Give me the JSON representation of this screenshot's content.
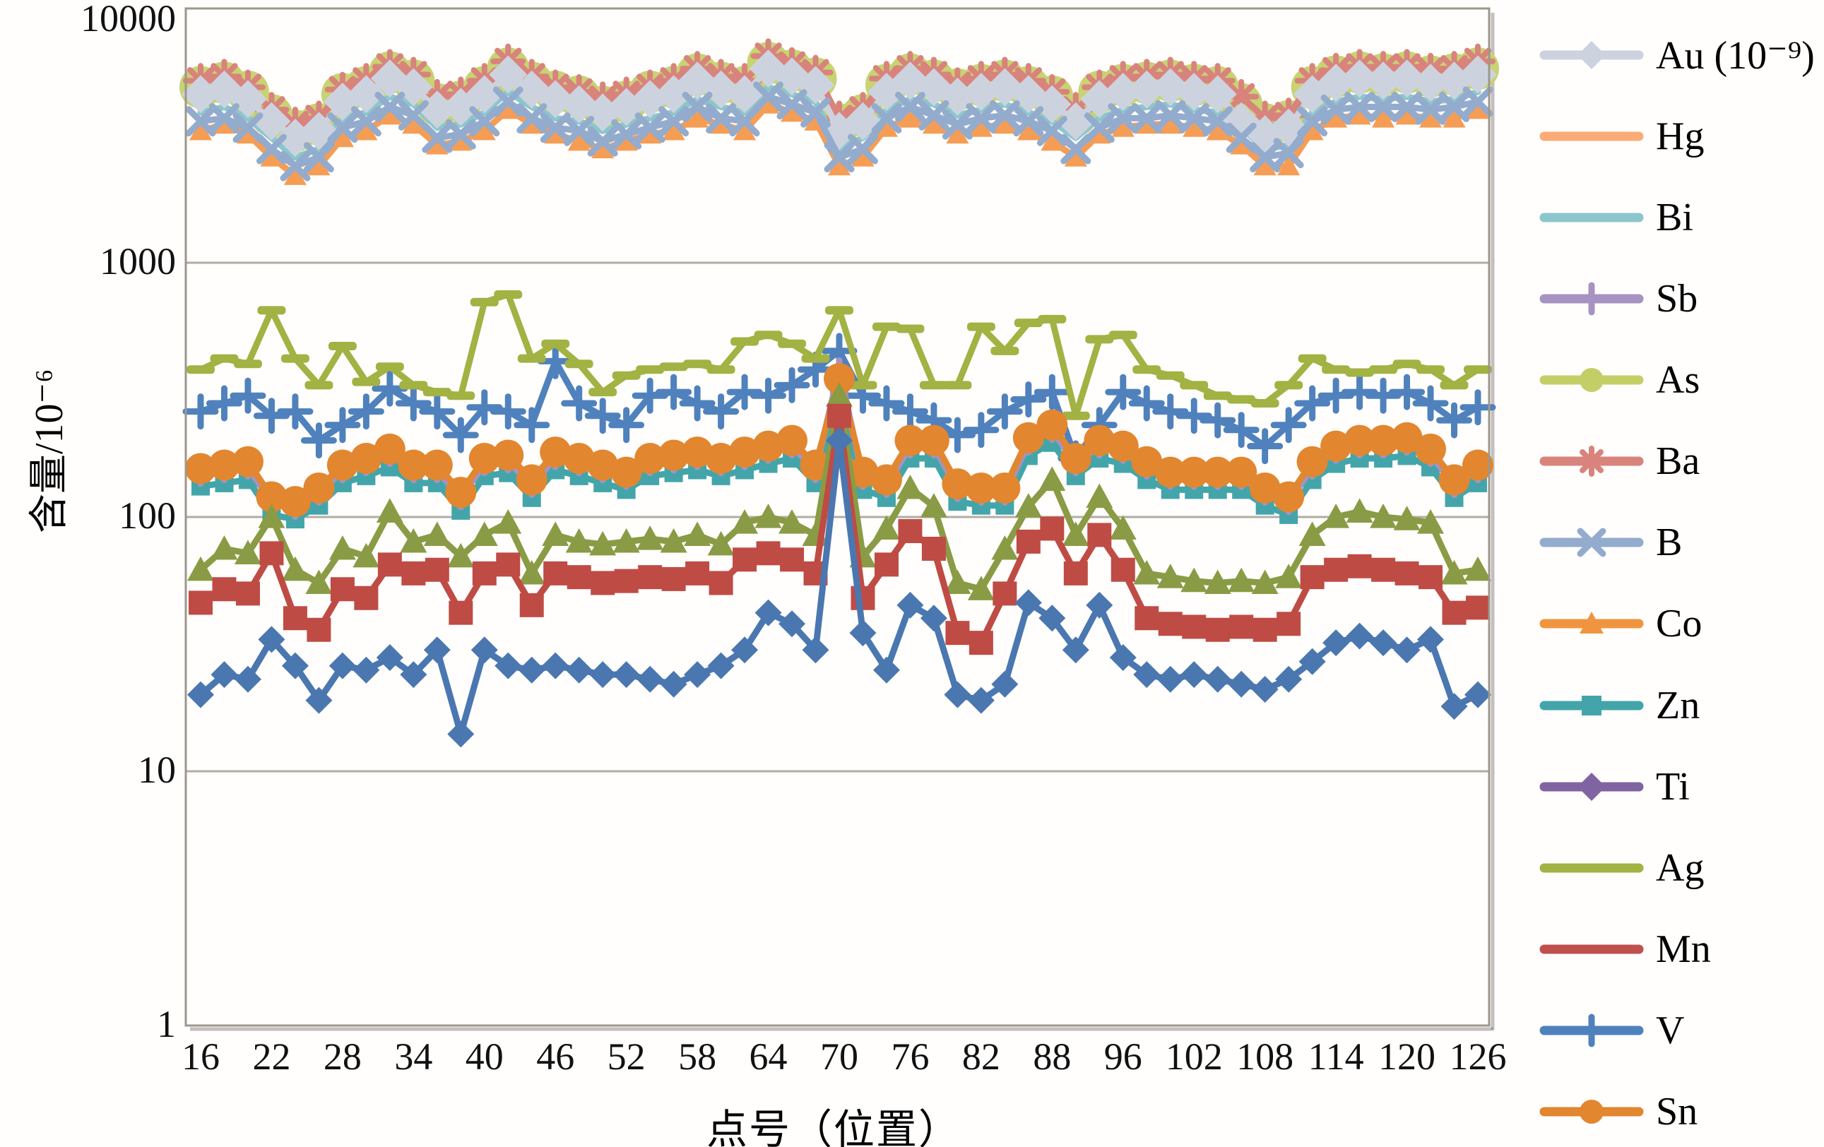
{
  "figure": {
    "y_axis": {
      "title": "含量/10⁻⁶",
      "ticks": [
        "10000",
        "1000",
        "100",
        "10",
        "1"
      ]
    },
    "x_axis": {
      "title": "点号（位置）",
      "tick_labels": [
        "16",
        "22",
        "28",
        "34",
        "40",
        "46",
        "52",
        "58",
        "64",
        "70",
        "76",
        "82",
        "88",
        "96",
        "102",
        "108",
        "114",
        "120",
        "126"
      ]
    },
    "grid_color": "#b2aca4",
    "border_color": "#9e968c",
    "legend_position": "right"
  },
  "chart_data": {
    "type": "line",
    "y_scale": "log",
    "ylim": [
      1,
      10000
    ],
    "x_categories": [
      16,
      18,
      20,
      22,
      24,
      26,
      28,
      30,
      32,
      34,
      36,
      38,
      40,
      42,
      44,
      46,
      48,
      50,
      52,
      54,
      56,
      58,
      60,
      62,
      64,
      66,
      68,
      70,
      72,
      74,
      76,
      78,
      80,
      82,
      84,
      86,
      88,
      90,
      92,
      96,
      98,
      100,
      102,
      104,
      106,
      108,
      110,
      112,
      114,
      116,
      118,
      120,
      122,
      124,
      126
    ],
    "label_every": 3,
    "legend_order": [
      "Au",
      "Hg",
      "Bi",
      "Sb",
      "As",
      "Ba",
      "B",
      "Co",
      "Zn",
      "Ti",
      "Ag",
      "Mn",
      "V",
      "Sn"
    ],
    "draw_order": [
      "As",
      "Ba",
      "Bi",
      "Au",
      "Hg",
      "B",
      "V",
      "Ag",
      "Zn",
      "Sb",
      "Sn",
      "Co",
      "Mn",
      "Ti"
    ],
    "series": [
      {
        "name": "Au",
        "legend_label": "Au (10⁻⁹)",
        "color": "#cdd3de",
        "legend_color": "#cdd3de",
        "marker": "diamond",
        "legend_marker": "diamond",
        "marker_size": 27,
        "values": [
          4600,
          4800,
          4400,
          3600,
          3100,
          3300,
          4300,
          4600,
          5300,
          4900,
          4000,
          4100,
          4600,
          5500,
          4800,
          4400,
          4200,
          3900,
          4100,
          4400,
          4600,
          5200,
          4800,
          4600,
          5800,
          5400,
          5000,
          3300,
          3600,
          4700,
          5200,
          4900,
          4500,
          4700,
          4900,
          4600,
          4200,
          3600,
          4400,
          4700,
          4800,
          4900,
          4700,
          4600,
          3600,
          3200,
          3400,
          4600,
          5100,
          5300,
          5200,
          5300,
          5100,
          5200,
          5500
        ]
      },
      {
        "name": "Hg",
        "legend_label": "Hg",
        "color": "#f59d55",
        "legend_color": "#fbab76",
        "marker": "triangle",
        "legend_marker": "none",
        "marker_size": 16,
        "values": [
          3300,
          3500,
          3200,
          2600,
          2200,
          2400,
          3100,
          3300,
          3800,
          3500,
          2900,
          3000,
          3300,
          4000,
          3500,
          3200,
          3000,
          2800,
          3000,
          3200,
          3300,
          3700,
          3500,
          3300,
          4200,
          3900,
          3600,
          2400,
          2600,
          3400,
          3700,
          3500,
          3200,
          3400,
          3500,
          3300,
          3000,
          2600,
          3200,
          3400,
          3500,
          3500,
          3400,
          3300,
          2900,
          2400,
          2400,
          3300,
          3700,
          3800,
          3700,
          3800,
          3700,
          3700,
          4000
        ]
      },
      {
        "name": "Bi",
        "legend_label": "Bi",
        "color": "#8cc6cd",
        "legend_color": "#8cc6cd",
        "marker": "none",
        "legend_marker": "none",
        "marker_size": 0,
        "values": [
          3900,
          4100,
          3700,
          3100,
          2600,
          2800,
          3700,
          3900,
          4500,
          4200,
          3400,
          3500,
          3900,
          4700,
          4100,
          3700,
          3600,
          3300,
          3500,
          3700,
          3900,
          4400,
          4100,
          3900,
          4900,
          4600,
          4300,
          2800,
          3100,
          4000,
          4400,
          4200,
          3800,
          4000,
          4200,
          3900,
          3600,
          3100,
          3700,
          4000,
          4100,
          4200,
          4000,
          3900,
          3400,
          2800,
          2900,
          3900,
          4300,
          4500,
          4400,
          4500,
          4300,
          4400,
          4700
        ]
      },
      {
        "name": "Sb",
        "legend_label": "Sb",
        "color": "#a793c1",
        "legend_color": "#a793c1",
        "marker": "plus",
        "legend_marker": "plus",
        "marker_size": 13,
        "values": [
          147,
          152,
          157,
          114,
          109,
          124,
          152,
          162,
          176,
          152,
          152,
          119,
          162,
          166,
          133,
          171,
          162,
          152,
          143,
          162,
          166,
          171,
          162,
          171,
          181,
          190,
          152,
          380,
          143,
          133,
          190,
          190,
          128,
          124,
          124,
          195,
          219,
          162,
          190,
          181,
          157,
          143,
          143,
          143,
          143,
          124,
          114,
          157,
          181,
          190,
          190,
          195,
          176,
          133,
          152
        ]
      },
      {
        "name": "As",
        "legend_label": "As",
        "color": "#c8d372",
        "legend_color": "#c3cf66",
        "marker": "circle",
        "legend_marker": "circle",
        "marker_size": 30,
        "values": [
          4900,
          5100,
          4700,
          3800,
          3300,
          3500,
          4600,
          4900,
          5600,
          5200,
          4200,
          4300,
          4900,
          5800,
          5100,
          4700,
          4500,
          4100,
          4300,
          4700,
          4900,
          5500,
          5100,
          4900,
          6100,
          5700,
          5300,
          3500,
          3800,
          5000,
          5500,
          5200,
          4800,
          5000,
          5200,
          4900,
          4500,
          3800,
          4700,
          5000,
          5100,
          5200,
          5000,
          4900,
          4200,
          3500,
          3600,
          4900,
          5400,
          5600,
          5500,
          5600,
          5400,
          5500,
          5800
        ]
      },
      {
        "name": "Ba",
        "legend_label": "Ba",
        "color": "#d9837d",
        "legend_color": "#d9837d",
        "marker": "asterisk",
        "legend_marker": "asterisk",
        "marker_size": 21,
        "values": [
          5200,
          5400,
          4900,
          4000,
          3500,
          3700,
          4800,
          5200,
          5900,
          5500,
          4500,
          4600,
          5200,
          6200,
          5400,
          4900,
          4700,
          4400,
          4600,
          4900,
          5200,
          5800,
          5400,
          5200,
          6500,
          6000,
          5600,
          3700,
          4000,
          5300,
          5800,
          5500,
          5000,
          5300,
          5500,
          5200,
          4700,
          4000,
          4900,
          5300,
          5400,
          5500,
          5300,
          5200,
          4500,
          3700,
          3800,
          5200,
          5700,
          5900,
          5800,
          5900,
          5700,
          5800,
          6200
        ]
      },
      {
        "name": "B",
        "legend_label": "B",
        "color": "#93abcd",
        "legend_color": "#93abcd",
        "marker": "x",
        "legend_marker": "x",
        "marker_size": 17,
        "values": [
          3600,
          3700,
          3400,
          2800,
          2400,
          2600,
          3400,
          3600,
          4100,
          3800,
          3100,
          3200,
          3600,
          4300,
          3700,
          3400,
          3300,
          3000,
          3200,
          3400,
          3600,
          4100,
          3700,
          3600,
          4500,
          4200,
          3900,
          2600,
          2800,
          3700,
          4100,
          3800,
          3500,
          3700,
          3800,
          3600,
          3300,
          2800,
          3400,
          3700,
          3700,
          3800,
          3700,
          3600,
          3100,
          2600,
          2700,
          3600,
          4000,
          4100,
          4100,
          4100,
          4000,
          4100,
          4300
        ]
      },
      {
        "name": "Co",
        "legend_label": "Co",
        "color": "#8a9b45",
        "legend_color": "#f0953f",
        "marker": "triangle",
        "legend_marker": "triangle",
        "marker_size": 19,
        "values": [
          62,
          75,
          72,
          100,
          62,
          55,
          75,
          70,
          105,
          80,
          85,
          70,
          85,
          95,
          60,
          85,
          80,
          78,
          80,
          82,
          80,
          85,
          78,
          95,
          100,
          95,
          85,
          300,
          70,
          90,
          130,
          110,
          55,
          52,
          75,
          110,
          140,
          85,
          120,
          90,
          60,
          58,
          56,
          55,
          56,
          55,
          58,
          85,
          100,
          105,
          100,
          98,
          95,
          60,
          62
        ]
      },
      {
        "name": "Zn",
        "legend_label": "Zn",
        "color": "#43a5aa",
        "legend_color": "#43a5aa",
        "marker": "square",
        "legend_marker": "square",
        "marker_size": 13,
        "values": [
          132,
          136,
          140,
          102,
          98,
          111,
          136,
          145,
          157,
          136,
          136,
          106,
          145,
          149,
          119,
          153,
          145,
          136,
          128,
          145,
          149,
          153,
          145,
          153,
          162,
          170,
          136,
          298,
          128,
          119,
          170,
          170,
          115,
          111,
          111,
          174,
          196,
          145,
          170,
          162,
          140,
          128,
          128,
          128,
          128,
          111,
          102,
          140,
          162,
          170,
          170,
          174,
          157,
          119,
          136
        ]
      },
      {
        "name": "Ti",
        "legend_label": "Ti",
        "color": "#4a77b0",
        "legend_color": "#8064a2",
        "marker": "diamond",
        "legend_marker": "diamond",
        "marker_size": 19,
        "values": [
          20,
          24,
          23,
          33,
          26,
          19,
          26,
          25,
          28,
          24,
          30,
          14,
          30,
          26,
          25,
          26,
          25,
          24,
          24,
          23,
          22,
          24,
          26,
          30,
          42,
          38,
          30,
          200,
          35,
          25,
          45,
          40,
          20,
          19,
          22,
          46,
          40,
          30,
          45,
          28,
          24,
          23,
          24,
          23,
          22,
          21,
          23,
          27,
          32,
          34,
          32,
          30,
          33,
          18,
          20
        ]
      },
      {
        "name": "Ag",
        "legend_label": "Ag",
        "color": "#a2b243",
        "legend_color": "#a2b243",
        "marker": "dash",
        "legend_marker": "none",
        "marker_size": 20,
        "values": [
          380,
          420,
          400,
          650,
          420,
          330,
          470,
          340,
          390,
          330,
          310,
          300,
          700,
          750,
          420,
          480,
          400,
          310,
          360,
          380,
          390,
          400,
          380,
          490,
          520,
          480,
          420,
          650,
          330,
          560,
          550,
          330,
          330,
          560,
          450,
          580,
          600,
          250,
          500,
          520,
          380,
          360,
          330,
          300,
          290,
          280,
          330,
          420,
          380,
          370,
          380,
          400,
          380,
          330,
          380
        ]
      },
      {
        "name": "Mn",
        "legend_label": "Mn",
        "color": "#bf4b45",
        "legend_color": "#c0504d",
        "marker": "square",
        "legend_marker": "none",
        "marker_size": 17,
        "values": [
          46,
          52,
          50,
          72,
          40,
          36,
          52,
          48,
          65,
          60,
          62,
          42,
          60,
          65,
          45,
          60,
          58,
          55,
          56,
          58,
          57,
          60,
          55,
          68,
          72,
          68,
          60,
          250,
          48,
          65,
          88,
          75,
          35,
          32,
          50,
          80,
          90,
          60,
          85,
          62,
          40,
          38,
          37,
          36,
          37,
          36,
          38,
          58,
          62,
          64,
          62,
          60,
          58,
          42,
          44
        ]
      },
      {
        "name": "V",
        "legend_label": "V",
        "color": "#4f81bd",
        "legend_color": "#4f81bd",
        "marker": "plus",
        "legend_marker": "plus",
        "marker_size": 21,
        "values": [
          260,
          280,
          300,
          250,
          260,
          200,
          230,
          260,
          320,
          280,
          260,
          210,
          270,
          260,
          230,
          410,
          280,
          250,
          230,
          300,
          310,
          280,
          260,
          310,
          300,
          330,
          380,
          450,
          300,
          280,
          260,
          240,
          210,
          220,
          260,
          290,
          310,
          170,
          230,
          310,
          280,
          260,
          250,
          240,
          220,
          190,
          230,
          280,
          300,
          310,
          300,
          310,
          280,
          240,
          270
        ]
      },
      {
        "name": "Sn",
        "legend_label": "Sn",
        "color": "#e2862f",
        "legend_color": "#e2862f",
        "marker": "circle",
        "legend_marker": "circle",
        "marker_size": 22,
        "values": [
          155,
          160,
          165,
          120,
          115,
          130,
          160,
          170,
          185,
          160,
          160,
          125,
          170,
          175,
          140,
          180,
          170,
          160,
          150,
          170,
          175,
          180,
          170,
          180,
          190,
          200,
          160,
          350,
          150,
          140,
          200,
          200,
          135,
          130,
          130,
          205,
          230,
          170,
          200,
          190,
          165,
          150,
          150,
          150,
          150,
          130,
          120,
          165,
          190,
          200,
          200,
          205,
          185,
          140,
          160
        ]
      }
    ]
  }
}
